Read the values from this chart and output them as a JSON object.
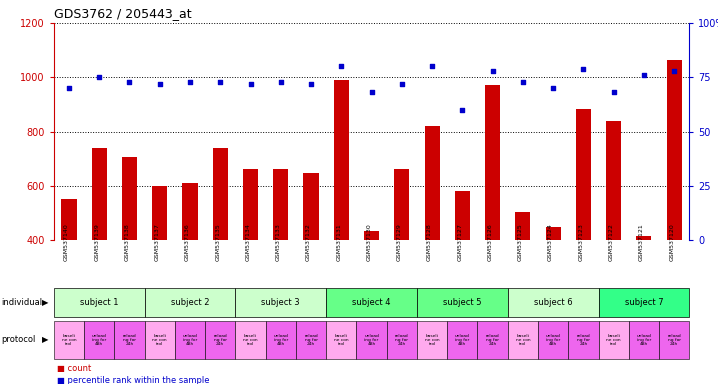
{
  "title": "GDS3762 / 205443_at",
  "samples": [
    "GSM537140",
    "GSM537139",
    "GSM537138",
    "GSM537137",
    "GSM537136",
    "GSM537135",
    "GSM537134",
    "GSM537133",
    "GSM537132",
    "GSM537131",
    "GSM537130",
    "GSM537129",
    "GSM537128",
    "GSM537127",
    "GSM537126",
    "GSM537125",
    "GSM537124",
    "GSM537123",
    "GSM537122",
    "GSM537121",
    "GSM537120"
  ],
  "bar_values": [
    551,
    740,
    706,
    600,
    609,
    740,
    660,
    660,
    647,
    990,
    435,
    662,
    820,
    580,
    970,
    505,
    449,
    884,
    840,
    414,
    1065
  ],
  "dot_values": [
    70,
    75,
    73,
    72,
    73,
    73,
    72,
    73,
    72,
    80,
    68,
    72,
    80,
    60,
    78,
    73,
    70,
    79,
    68,
    76,
    78
  ],
  "ylim_left": [
    400,
    1200
  ],
  "ylim_right": [
    0,
    100
  ],
  "yticks_left": [
    400,
    600,
    800,
    1000,
    1200
  ],
  "yticks_right": [
    0,
    25,
    50,
    75,
    100
  ],
  "bar_color": "#cc0000",
  "dot_color": "#0000cc",
  "subjects": [
    {
      "label": "subject 1",
      "start": 0,
      "end": 3,
      "color": "#ccffcc"
    },
    {
      "label": "subject 2",
      "start": 3,
      "end": 6,
      "color": "#ccffcc"
    },
    {
      "label": "subject 3",
      "start": 6,
      "end": 9,
      "color": "#ccffcc"
    },
    {
      "label": "subject 4",
      "start": 9,
      "end": 12,
      "color": "#66ff88"
    },
    {
      "label": "subject 5",
      "start": 12,
      "end": 15,
      "color": "#66ff88"
    },
    {
      "label": "subject 6",
      "start": 15,
      "end": 18,
      "color": "#ccffcc"
    },
    {
      "label": "subject 7",
      "start": 18,
      "end": 21,
      "color": "#33ff88"
    }
  ],
  "protocol_colors": [
    "#ffaaee",
    "#ee66ee",
    "#ee66ee"
  ],
  "legend_count_color": "#cc0000",
  "legend_dot_color": "#0000cc"
}
